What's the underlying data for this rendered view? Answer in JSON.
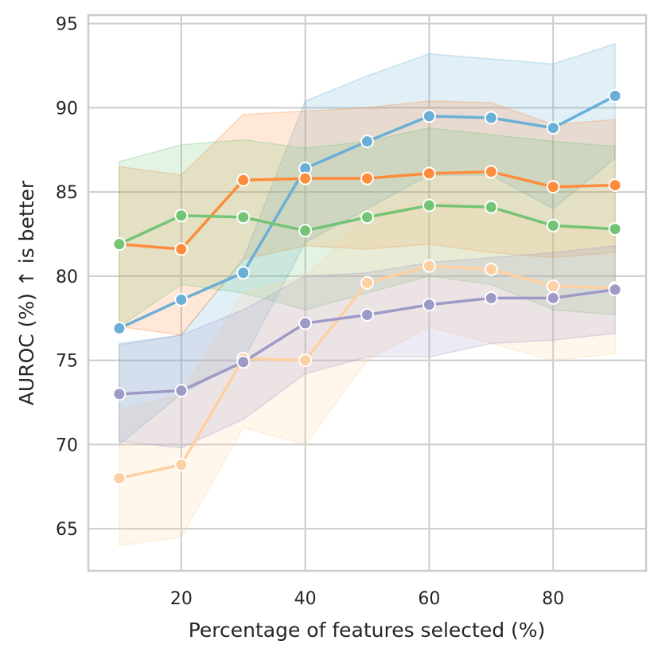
{
  "chart_data": {
    "type": "line",
    "title": "",
    "xlabel": "Percentage of features selected (%)",
    "ylabel": "AUROC (%) ↑ is better",
    "xlim": [
      5,
      95
    ],
    "ylim": [
      62.5,
      95.5
    ],
    "xticks": [
      20,
      40,
      60,
      80
    ],
    "yticks": [
      65,
      70,
      75,
      80,
      85,
      90,
      95
    ],
    "grid": true,
    "legend": "none",
    "x": [
      10,
      20,
      30,
      40,
      50,
      60,
      70,
      80,
      90
    ],
    "series": [
      {
        "name": "blue",
        "color": "#6baed6",
        "values": [
          76.9,
          78.6,
          80.2,
          86.4,
          88.0,
          89.5,
          89.4,
          88.8,
          90.7
        ],
        "lower": [
          70.0,
          73.0,
          75.0,
          82.0,
          84.0,
          86.0,
          86.0,
          84.0,
          87.0
        ],
        "upper": [
          76.0,
          76.5,
          81.0,
          90.4,
          91.9,
          93.2,
          92.9,
          92.6,
          93.8
        ]
      },
      {
        "name": "orange",
        "color": "#fd8d3c",
        "values": [
          81.9,
          81.6,
          85.7,
          85.8,
          85.8,
          86.1,
          86.2,
          85.3,
          85.4
        ],
        "lower": [
          77.0,
          76.5,
          81.0,
          81.8,
          81.6,
          81.9,
          81.4,
          81.1,
          81.4
        ],
        "upper": [
          86.5,
          86.0,
          89.6,
          89.8,
          90.0,
          90.4,
          90.3,
          89.0,
          89.3
        ]
      },
      {
        "name": "green",
        "color": "#74c476",
        "values": [
          81.9,
          83.6,
          83.5,
          82.7,
          83.5,
          84.2,
          84.1,
          83.0,
          82.8
        ],
        "lower": [
          77.0,
          79.5,
          79.0,
          78.0,
          79.0,
          80.0,
          79.5,
          78.0,
          77.7
        ],
        "upper": [
          86.8,
          87.8,
          88.1,
          87.6,
          88.0,
          88.8,
          88.4,
          88.0,
          87.7
        ]
      },
      {
        "name": "peach",
        "color": "#fdd0a2",
        "values": [
          68.0,
          68.8,
          75.1,
          75.0,
          79.6,
          80.6,
          80.4,
          79.4,
          79.3
        ],
        "lower": [
          64.0,
          64.5,
          71.0,
          70.0,
          75.0,
          77.0,
          76.0,
          75.0,
          75.4
        ],
        "upper": [
          72.0,
          73.0,
          79.0,
          80.0,
          83.5,
          84.5,
          84.0,
          83.0,
          82.5
        ]
      },
      {
        "name": "purple",
        "color": "#9e9ac8",
        "values": [
          73.0,
          73.2,
          74.9,
          77.2,
          77.7,
          78.3,
          78.7,
          78.7,
          79.2
        ],
        "lower": [
          70.2,
          69.8,
          71.5,
          74.2,
          75.2,
          75.2,
          76.0,
          76.2,
          76.6
        ],
        "upper": [
          75.9,
          76.5,
          78.0,
          80.0,
          80.2,
          80.8,
          81.1,
          81.4,
          81.8
        ]
      }
    ]
  }
}
